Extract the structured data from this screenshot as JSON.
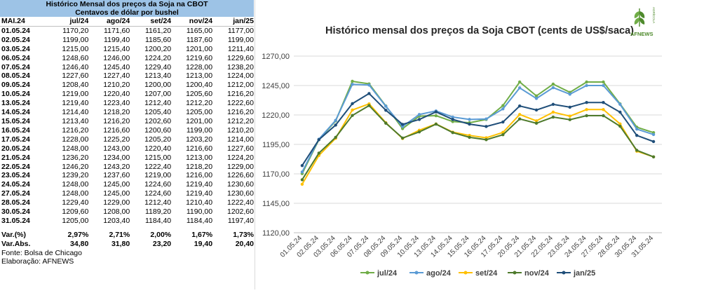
{
  "table": {
    "title": "Histórico Mensal dos preços da Soja na CBOT",
    "subtitle": "Centavos de dólar por bushel",
    "columns": [
      "MAI.24",
      "jul/24",
      "ago/24",
      "set/24",
      "nov/24",
      "jan/25"
    ],
    "rows": [
      [
        "01.05.24",
        "1170,20",
        "1171,60",
        "1161,20",
        "1165,00",
        "1177,00"
      ],
      [
        "02.05.24",
        "1199,00",
        "1199,40",
        "1185,60",
        "1187,60",
        "1199,00"
      ],
      [
        "03.05.24",
        "1215,00",
        "1215,40",
        "1200,20",
        "1201,00",
        "1211,40"
      ],
      [
        "06.05.24",
        "1248,60",
        "1246,00",
        "1224,20",
        "1219,60",
        "1229,60"
      ],
      [
        "07.05.24",
        "1246,40",
        "1245,40",
        "1229,40",
        "1228,00",
        "1238,20"
      ],
      [
        "08.05.24",
        "1227,60",
        "1227,40",
        "1213,40",
        "1213,00",
        "1224,00"
      ],
      [
        "09.05.24",
        "1208,40",
        "1210,20",
        "1200,00",
        "1200,40",
        "1212,00"
      ],
      [
        "10.05.24",
        "1219,00",
        "1220,40",
        "1207,00",
        "1205,60",
        "1216,20"
      ],
      [
        "13.05.24",
        "1219,40",
        "1223,40",
        "1212,40",
        "1212,20",
        "1222,60"
      ],
      [
        "14.05.24",
        "1214,40",
        "1218,20",
        "1205,40",
        "1205,00",
        "1216,20"
      ],
      [
        "15.05.24",
        "1213,40",
        "1216,20",
        "1202,60",
        "1201,00",
        "1212,20"
      ],
      [
        "16.05.24",
        "1216,20",
        "1216,60",
        "1200,60",
        "1199,00",
        "1210,20"
      ],
      [
        "17.05.24",
        "1228,00",
        "1225,20",
        "1205,20",
        "1203,20",
        "1214,00"
      ],
      [
        "20.05.24",
        "1248,00",
        "1243,00",
        "1220,40",
        "1216,60",
        "1227,60"
      ],
      [
        "21.05.24",
        "1236,20",
        "1234,00",
        "1215,00",
        "1213,00",
        "1224,20"
      ],
      [
        "22.05.24",
        "1246,20",
        "1243,20",
        "1222,40",
        "1218,20",
        "1229,00"
      ],
      [
        "23.05.24",
        "1239,20",
        "1237,60",
        "1219,00",
        "1216,00",
        "1226,60"
      ],
      [
        "24.05.24",
        "1248,00",
        "1245,00",
        "1224,60",
        "1219,40",
        "1230,60"
      ],
      [
        "27.05.24",
        "1248,00",
        "1245,00",
        "1224,60",
        "1219,40",
        "1230,60"
      ],
      [
        "28.05.24",
        "1229,40",
        "1229,00",
        "1212,40",
        "1210,40",
        "1222,40"
      ],
      [
        "30.05.24",
        "1209,60",
        "1208,00",
        "1189,20",
        "1190,00",
        "1202,60"
      ],
      [
        "31.05.24",
        "1205,00",
        "1203,40",
        "1184,40",
        "1184,40",
        "1197,40"
      ]
    ],
    "var_pct": [
      "Var.(%)",
      "2,97%",
      "2,71%",
      "2,00%",
      "1,67%",
      "1,73%"
    ],
    "var_abs": [
      "Var.Abs.",
      "34,80",
      "31,80",
      "23,20",
      "19,40",
      "20,40"
    ],
    "source": "Fonte: Bolsa de Chicago",
    "credit": "Elaboração: AFNEWS"
  },
  "logo": {
    "text": "AFNEWS",
    "side_text": "AGRÍCOLA"
  },
  "chart_data": {
    "type": "line",
    "title": "Histórico mensal dos preços da Soja CBOT (cents de US$/saca)",
    "xlabel": "",
    "ylabel": "",
    "ylim": [
      1120,
      1270
    ],
    "yticks": [
      "1120,00",
      "1145,00",
      "1170,00",
      "1195,00",
      "1220,00",
      "1245,00",
      "1270,00"
    ],
    "ytick_values": [
      1120,
      1145,
      1170,
      1195,
      1220,
      1245,
      1270
    ],
    "categories": [
      "01.05.24",
      "02.05.24",
      "03.05.24",
      "06.05.24",
      "07.05.24",
      "08.05.24",
      "09.05.24",
      "10.05.24",
      "13.05.24",
      "14.05.24",
      "15.05.24",
      "16.05.24",
      "17.05.24",
      "20.05.24",
      "21.05.24",
      "22.05.24",
      "23.05.24",
      "24.05.24",
      "27.05.24",
      "28.05.24",
      "30.05.24",
      "31.05.24"
    ],
    "grid": true,
    "legend_position": "bottom",
    "series": [
      {
        "name": "jul/24",
        "color": "#70ad47",
        "values": [
          1170.2,
          1199.0,
          1215.0,
          1248.6,
          1246.4,
          1227.6,
          1208.4,
          1219.0,
          1219.4,
          1214.4,
          1213.4,
          1216.2,
          1228.0,
          1248.0,
          1236.2,
          1246.2,
          1239.2,
          1248.0,
          1248.0,
          1229.4,
          1209.6,
          1205.0
        ]
      },
      {
        "name": "ago/24",
        "color": "#5b9bd5",
        "values": [
          1171.6,
          1199.4,
          1215.4,
          1246.0,
          1245.4,
          1227.4,
          1210.2,
          1220.4,
          1223.4,
          1218.2,
          1216.2,
          1216.6,
          1225.2,
          1243.0,
          1234.0,
          1243.2,
          1237.6,
          1245.0,
          1245.0,
          1229.0,
          1208.0,
          1203.4
        ]
      },
      {
        "name": "set/24",
        "color": "#ffc000",
        "values": [
          1161.2,
          1185.6,
          1200.2,
          1224.2,
          1229.4,
          1213.4,
          1200.0,
          1207.0,
          1212.4,
          1205.4,
          1202.6,
          1200.6,
          1205.2,
          1220.4,
          1215.0,
          1222.4,
          1219.0,
          1224.6,
          1224.6,
          1212.4,
          1189.2,
          1184.4
        ]
      },
      {
        "name": "nov/24",
        "color": "#4e7a2c",
        "values": [
          1165.0,
          1187.6,
          1201.0,
          1219.6,
          1228.0,
          1213.0,
          1200.4,
          1205.6,
          1212.2,
          1205.0,
          1201.0,
          1199.0,
          1203.2,
          1216.6,
          1213.0,
          1218.2,
          1216.0,
          1219.4,
          1219.4,
          1210.4,
          1190.0,
          1184.4
        ]
      },
      {
        "name": "jan/25",
        "color": "#1f4e79",
        "values": [
          1177.0,
          1199.0,
          1211.4,
          1229.6,
          1238.2,
          1224.0,
          1212.0,
          1216.2,
          1222.6,
          1216.2,
          1212.2,
          1210.2,
          1214.0,
          1227.6,
          1224.2,
          1229.0,
          1226.6,
          1230.6,
          1230.6,
          1222.4,
          1202.6,
          1197.4
        ]
      }
    ]
  }
}
